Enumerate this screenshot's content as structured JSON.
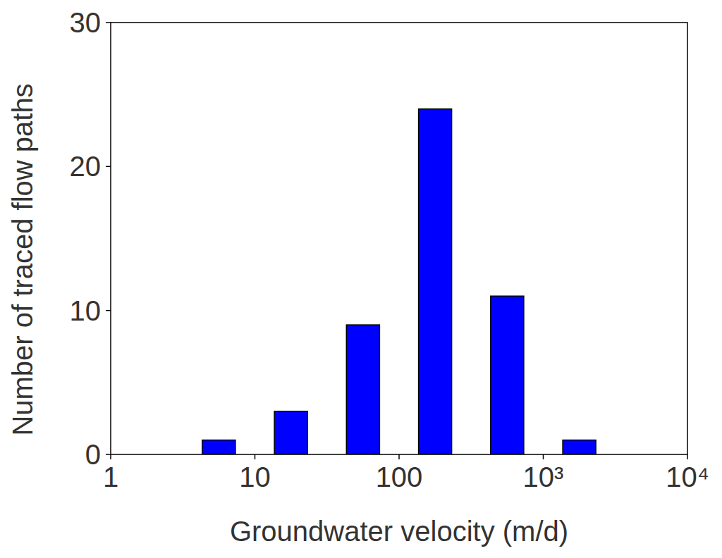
{
  "chart_data": {
    "type": "histogram",
    "x_label": "Groundwater velocity (m/d)",
    "y_label": "Number of traced flow paths",
    "bins": [
      3.16,
      10,
      31.6,
      100,
      316,
      1000,
      3160
    ],
    "values": [
      1,
      3,
      9,
      24,
      11,
      1
    ],
    "color": "#0000ff",
    "log": "x",
    "xlim": [
      1,
      10000
    ],
    "xticks": [
      1,
      10,
      100,
      {
        "value": 1000,
        "label": "10³"
      },
      {
        "value": 10000,
        "label": "10⁴"
      }
    ],
    "ylim": [
      0,
      30
    ],
    "yticks": [
      0,
      10,
      20,
      30
    ],
    "grid": false
  }
}
